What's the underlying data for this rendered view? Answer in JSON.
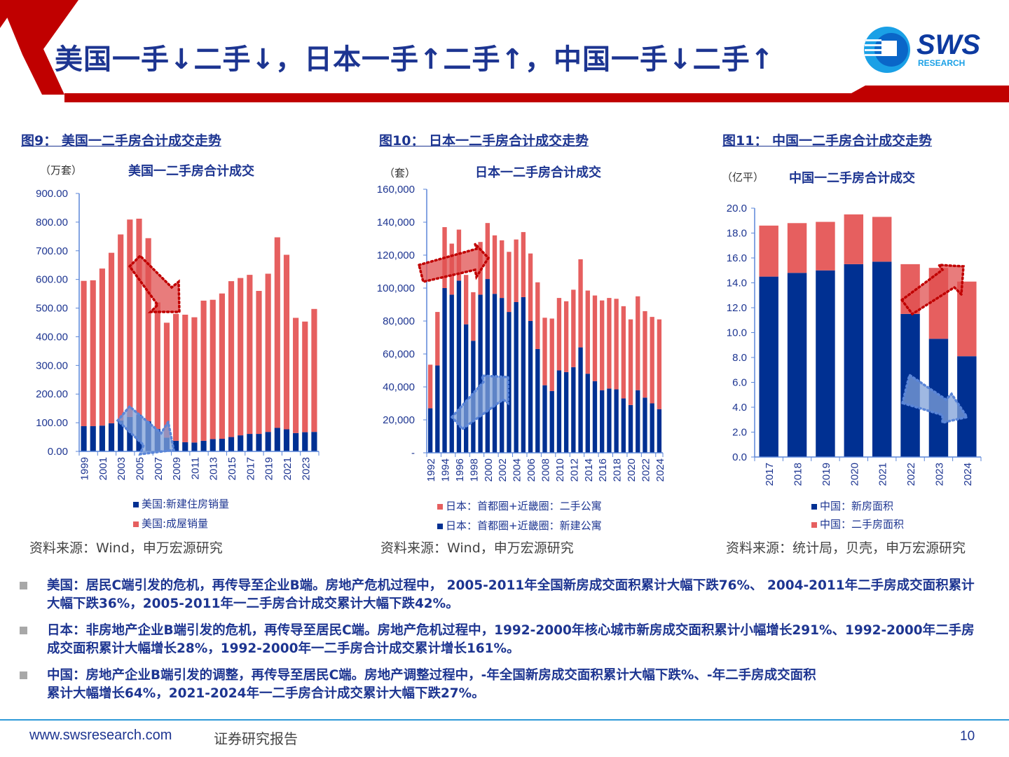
{
  "header": {
    "title": "美国一手↓二手↓，日本一手↑二手↑，中国一手↓二手↑",
    "logo_text": "SWS",
    "logo_subtext": "RESEARCH"
  },
  "colors": {
    "accent_red": "#c00000",
    "navy": "#003092",
    "bar_red": "#e65f5f",
    "axis": "#5b86d8",
    "text_blue": "#1d3591"
  },
  "figures": [
    {
      "caption": "图9：  美国一二手房合计成交走势",
      "unit": "（万套）",
      "source": "资料来源：Wind，申万宏源研究"
    },
    {
      "caption": "图10：  日本一二手房合计成交走势",
      "unit": "（套）",
      "source": "资料来源：Wind，申万宏源研究"
    },
    {
      "caption": "图11：  中国一二手房合计成交走势",
      "unit": "（亿平）",
      "source": "资料来源：统计局，贝壳，申万宏源研究"
    }
  ],
  "chart_data": [
    {
      "type": "bar",
      "stacked": true,
      "title": "美国一二手房合计成交",
      "ylim": [
        0,
        900
      ],
      "yticks": [
        "0.00",
        "100.00",
        "200.00",
        "300.00",
        "400.00",
        "500.00",
        "600.00",
        "700.00",
        "800.00",
        "900.00"
      ],
      "categories": [
        "1999",
        "2000",
        "2001",
        "2002",
        "2003",
        "2004",
        "2005",
        "2006",
        "2007",
        "2008",
        "2009",
        "2010",
        "2011",
        "2012",
        "2013",
        "2014",
        "2015",
        "2016",
        "2017",
        "2018",
        "2019",
        "2020",
        "2021",
        "2022",
        "2023",
        "2024"
      ],
      "xticklabels": [
        "1999",
        "2001",
        "2003",
        "2005",
        "2007",
        "2009",
        "2011",
        "2013",
        "2015",
        "2017",
        "2019",
        "2021",
        "2023"
      ],
      "series": [
        {
          "name": "美国:新建住房销量",
          "color": "#003092",
          "values": [
            88,
            88,
            90,
            98,
            108,
            120,
            128,
            105,
            78,
            48,
            37,
            32,
            31,
            37,
            43,
            44,
            50,
            56,
            61,
            61,
            68,
            82,
            77,
            64,
            67,
            68
          ]
        },
        {
          "name": "美国:成屋销量",
          "color": "#e65f5f",
          "values": [
            507,
            509,
            548,
            595,
            649,
            689,
            684,
            639,
            442,
            401,
            443,
            445,
            437,
            489,
            486,
            507,
            544,
            549,
            555,
            499,
            552,
            665,
            609,
            402,
            386,
            429
          ]
        }
      ],
      "legend_order": [
        0,
        1
      ],
      "annotations": [
        {
          "kind": "arrow",
          "direction": "down",
          "color": "red",
          "span": [
            "2004",
            "2009"
          ]
        },
        {
          "kind": "arrow",
          "direction": "down",
          "color": "blue",
          "span": [
            "2003",
            "2009"
          ]
        }
      ]
    },
    {
      "type": "bar",
      "stacked": true,
      "title": "日本一二手房合计成交",
      "ylim": [
        0,
        160000
      ],
      "yticks": [
        "-",
        "20,000",
        "40,000",
        "60,000",
        "80,000",
        "100,000",
        "120,000",
        "140,000",
        "160,000"
      ],
      "categories": [
        "1992",
        "1993",
        "1994",
        "1995",
        "1996",
        "1997",
        "1998",
        "1999",
        "2000",
        "2001",
        "2002",
        "2003",
        "2004",
        "2005",
        "2006",
        "2007",
        "2008",
        "2009",
        "2010",
        "2011",
        "2012",
        "2013",
        "2014",
        "2015",
        "2016",
        "2017",
        "2018",
        "2019",
        "2020",
        "2021",
        "2022",
        "2023",
        "2024"
      ],
      "xticklabels": [
        "1992",
        "1994",
        "1996",
        "1998",
        "2000",
        "2002",
        "2004",
        "2006",
        "2008",
        "2010",
        "2012",
        "2014",
        "2016",
        "2018",
        "2020",
        "2022",
        "2024"
      ],
      "series": [
        {
          "name": "日本：首都圈+近畿圈：新建公寓",
          "color": "#003092",
          "values": [
            27000,
            53000,
            100000,
            96000,
            104500,
            78000,
            68000,
            96000,
            105500,
            96500,
            94000,
            85500,
            91500,
            94500,
            80000,
            63000,
            41000,
            37500,
            50000,
            49000,
            52000,
            64000,
            48000,
            43500,
            38000,
            39000,
            38500,
            33000,
            29000,
            38000,
            33500,
            30000,
            26500
          ]
        },
        {
          "name": "日本：首都圈+近畿圈：二手公寓",
          "color": "#e65f5f",
          "values": [
            26500,
            32500,
            37000,
            31000,
            31000,
            30000,
            29500,
            32000,
            34000,
            35500,
            35000,
            36500,
            38000,
            39500,
            41000,
            40500,
            41000,
            44000,
            44000,
            43000,
            47000,
            53500,
            50500,
            52000,
            54500,
            55000,
            55000,
            56000,
            52000,
            57000,
            52500,
            52500,
            54500
          ]
        }
      ],
      "legend_order": [
        1,
        0
      ],
      "annotations": [
        {
          "kind": "arrow",
          "direction": "up",
          "color": "red",
          "span": [
            "1992",
            "2000"
          ]
        },
        {
          "kind": "arrow",
          "direction": "up",
          "color": "blue",
          "span": [
            "1996",
            "2002"
          ]
        }
      ]
    },
    {
      "type": "bar",
      "stacked": true,
      "title": "中国一二手房合计成交",
      "ylim": [
        0,
        20
      ],
      "yticks": [
        "0.0",
        "2.0",
        "4.0",
        "6.0",
        "8.0",
        "10.0",
        "12.0",
        "14.0",
        "16.0",
        "18.0",
        "20.0"
      ],
      "categories": [
        "2017",
        "2018",
        "2019",
        "2020",
        "2021",
        "2022",
        "2023",
        "2024"
      ],
      "xticklabels": [
        "2017",
        "2018",
        "2019",
        "2020",
        "2021",
        "2022",
        "2023",
        "2024"
      ],
      "series": [
        {
          "name": "中国：新房面积",
          "color": "#003092",
          "values": [
            14.5,
            14.8,
            15.0,
            15.5,
            15.7,
            11.5,
            9.5,
            8.1
          ]
        },
        {
          "name": "中国：二手房面积",
          "color": "#e65f5f",
          "values": [
            4.1,
            4.0,
            3.9,
            4.0,
            3.6,
            4.0,
            5.7,
            6.0
          ]
        }
      ],
      "legend_order": [
        0,
        1
      ],
      "annotations": [
        {
          "kind": "arrow",
          "direction": "up",
          "color": "red",
          "span": [
            "2022",
            "2024"
          ]
        },
        {
          "kind": "arrow",
          "direction": "down",
          "color": "blue",
          "span": [
            "2022",
            "2024"
          ]
        }
      ]
    }
  ],
  "bullets": [
    "美国：居民C端引发的危机，再传导至企业B端。房地产危机过程中， 2005-2011年全国新房成交面积累计大幅下跌76%、 2004-2011年二手房成交面积累计大幅下跌36%，2005-2011年一二手房合计成交累计大幅下跌42%。",
    "日本：非房地产企业B端引发的危机，再传导至居民C端。房地产危机过程中，1992-2000年核心城市新房成交面积累计小幅增长291%、1992-2000年二手房成交面积累计大幅增长28%，1992-2000年一二手房合计成交累计增长161%。",
    "中国：房地产企业B端引发的调整，再传导至居民C端。房地产调整过程中，-年全国新房成交面积累计大幅下跌%、-年二手房成交面积累计大幅增长64%，2021-2024年一二手房合计成交累计大幅下跌27%。"
  ],
  "footer": {
    "url": "www.swsresearch.com",
    "doc_type": "证券研究报告",
    "page": "10"
  }
}
